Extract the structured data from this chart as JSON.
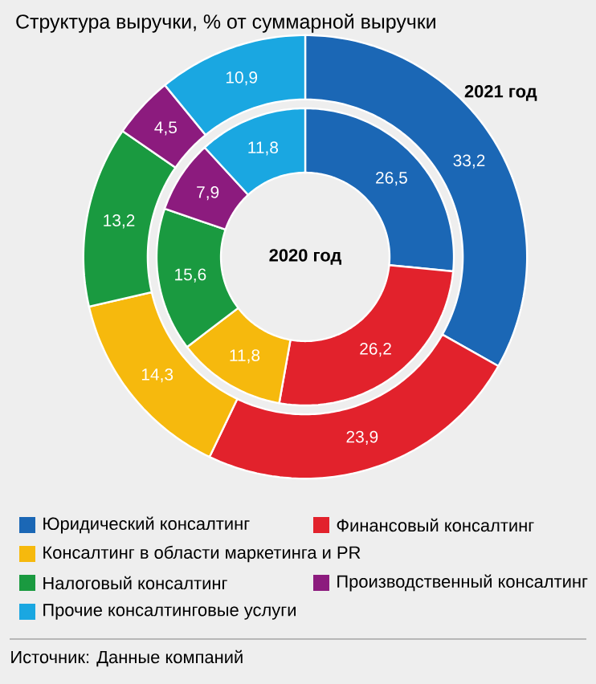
{
  "chart_data": {
    "type": "donut",
    "title": "Структура выручки, % от суммарной выручки",
    "categories": [
      "Юридический консалтинг",
      "Финансовый консалтинг",
      "Консалтинг в области маркетинга и PR",
      "Налоговый консалтинг",
      "Производственный консалтинг",
      "Прочие консалтинговые услуги"
    ],
    "colors": [
      "#1b67b5",
      "#e2222c",
      "#f6b90d",
      "#1a9a40",
      "#8c1b7e",
      "#1aa7e1"
    ],
    "series": [
      {
        "name": "2021 год",
        "values": [
          33.2,
          23.9,
          14.3,
          13.2,
          4.5,
          10.9
        ],
        "value_labels": [
          "33,2",
          "23,9",
          "14,3",
          "13,2",
          "4,5",
          "10,9"
        ]
      },
      {
        "name": "2020 год",
        "values": [
          26.5,
          26.2,
          11.8,
          15.6,
          7.9,
          11.8
        ],
        "value_labels": [
          "26,5",
          "26,2",
          "11,8",
          "15,6",
          "7,9",
          "11,8"
        ]
      }
    ],
    "legend": "bottom",
    "annotations": [
      "Источник: Данные компаний"
    ]
  }
}
